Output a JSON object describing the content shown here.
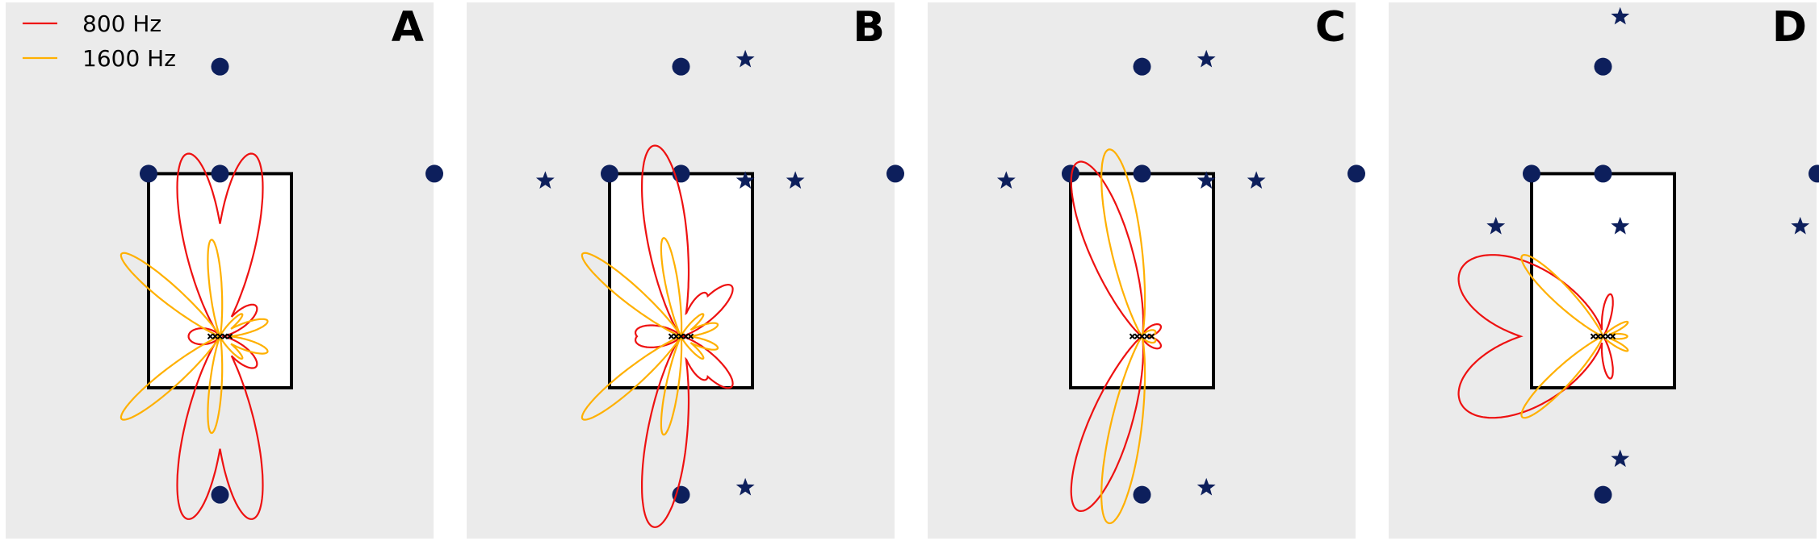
{
  "legend": {
    "items": [
      {
        "label": "800 Hz",
        "color": "#ee1111"
      },
      {
        "label": "1600 Hz",
        "color": "#ffb000"
      }
    ]
  },
  "colors": {
    "panel_background": "#ebebeb",
    "room_fill": "#ffffff",
    "room_edge": "#000000",
    "marker": "#0d1f5c"
  },
  "chart_data": [
    {
      "type": "polar-overlay",
      "label": "A",
      "xlim": [
        -1.5,
        1.5
      ],
      "ylim": [
        -1.5,
        2.2
      ],
      "room": {
        "x": [
          -0.5,
          0.5
        ],
        "y": [
          -0.5,
          1.0
        ]
      },
      "array_center": [
        0.0,
        -0.14
      ],
      "circles": [
        [
          0,
          1.75
        ],
        [
          -0.5,
          1.0
        ],
        [
          0,
          1.0
        ],
        [
          1.5,
          1.0
        ],
        [
          0,
          -1.25
        ]
      ],
      "stars": [],
      "series": [
        {
          "name": "800 Hz",
          "lobes": [
            {
              "dir": 80,
              "len": 1.3,
              "w": 10
            },
            {
              "dir": 100,
              "len": 1.3,
              "w": 10
            },
            {
              "dir": -80,
              "len": 1.3,
              "w": 10
            },
            {
              "dir": -100,
              "len": 1.3,
              "w": 10
            },
            {
              "dir": 40,
              "len": 0.33,
              "w": 16
            },
            {
              "dir": -40,
              "len": 0.33,
              "w": 16
            },
            {
              "dir": 180,
              "len": 0.22,
              "w": 25
            }
          ]
        },
        {
          "name": "1600 Hz",
          "lobes": [
            {
              "dir": 140,
              "len": 0.9,
              "w": 7
            },
            {
              "dir": -140,
              "len": 0.9,
              "w": 7
            },
            {
              "dir": 95,
              "len": 0.68,
              "w": 6
            },
            {
              "dir": -95,
              "len": 0.68,
              "w": 6
            },
            {
              "dir": 18,
              "len": 0.35,
              "w": 10
            },
            {
              "dir": -18,
              "len": 0.35,
              "w": 10
            },
            {
              "dir": 45,
              "len": 0.22,
              "w": 8
            },
            {
              "dir": -45,
              "len": 0.22,
              "w": 8
            }
          ]
        }
      ]
    },
    {
      "type": "polar-overlay",
      "label": "B",
      "xlim": [
        -1.5,
        1.5
      ],
      "ylim": [
        -1.5,
        2.2
      ],
      "room": {
        "x": [
          -0.5,
          0.5
        ],
        "y": [
          -0.5,
          1.0
        ]
      },
      "array_center": [
        0.0,
        -0.14
      ],
      "circles": [
        [
          -0.5,
          1.0
        ],
        [
          0,
          1.0
        ],
        [
          0,
          1.75
        ],
        [
          1.5,
          1.0
        ],
        [
          0,
          -1.25
        ]
      ],
      "stars": [
        [
          0.45,
          1.8
        ],
        [
          -0.95,
          0.95
        ],
        [
          0.45,
          0.95
        ],
        [
          0.8,
          0.95
        ],
        [
          0.45,
          -1.2
        ]
      ],
      "series": [
        {
          "name": "800 Hz",
          "lobes": [
            {
              "dir": 98,
              "len": 1.35,
              "w": 10
            },
            {
              "dir": -98,
              "len": 1.35,
              "w": 10
            },
            {
              "dir": 45,
              "len": 0.5,
              "w": 13
            },
            {
              "dir": -45,
              "len": 0.5,
              "w": 13
            },
            {
              "dir": 175,
              "len": 0.32,
              "w": 18
            },
            {
              "dir": -175,
              "len": 0.32,
              "w": 18
            },
            {
              "dir": 60,
              "len": 0.35,
              "w": 14
            },
            {
              "dir": -60,
              "len": 0.35,
              "w": 14
            }
          ]
        },
        {
          "name": "1600 Hz",
          "lobes": [
            {
              "dir": 140,
              "len": 0.9,
              "w": 7
            },
            {
              "dir": -140,
              "len": 0.9,
              "w": 7
            },
            {
              "dir": 100,
              "len": 0.7,
              "w": 6
            },
            {
              "dir": -100,
              "len": 0.7,
              "w": 6
            },
            {
              "dir": 18,
              "len": 0.27,
              "w": 10
            },
            {
              "dir": -18,
              "len": 0.27,
              "w": 10
            },
            {
              "dir": 45,
              "len": 0.22,
              "w": 8
            },
            {
              "dir": -45,
              "len": 0.22,
              "w": 8
            }
          ]
        }
      ]
    },
    {
      "type": "polar-overlay",
      "label": "C",
      "xlim": [
        -1.5,
        1.5
      ],
      "ylim": [
        -1.5,
        2.2
      ],
      "room": {
        "x": [
          -0.5,
          0.5
        ],
        "y": [
          -0.5,
          1.0
        ]
      },
      "array_center": [
        0.0,
        -0.14
      ],
      "circles": [
        [
          -0.5,
          1.0
        ],
        [
          0,
          1.0
        ],
        [
          0,
          1.75
        ],
        [
          1.5,
          1.0
        ],
        [
          0,
          -1.25
        ]
      ],
      "stars": [
        [
          0.45,
          1.8
        ],
        [
          -0.95,
          0.95
        ],
        [
          0.45,
          0.95
        ],
        [
          0.8,
          0.95
        ],
        [
          0.45,
          -1.2
        ]
      ],
      "series": [
        {
          "name": "800 Hz",
          "lobes": [
            {
              "dir": 110,
              "len": 1.3,
              "w": 11
            },
            {
              "dir": -110,
              "len": 1.3,
              "w": 11
            },
            {
              "dir": 30,
              "len": 0.15,
              "w": 20
            },
            {
              "dir": -30,
              "len": 0.15,
              "w": 20
            }
          ]
        },
        {
          "name": "1600 Hz",
          "lobes": [
            {
              "dir": 100,
              "len": 1.33,
              "w": 8
            },
            {
              "dir": -100,
              "len": 1.33,
              "w": 8
            },
            {
              "dir": 20,
              "len": 0.1,
              "w": 20
            },
            {
              "dir": -20,
              "len": 0.1,
              "w": 20
            }
          ]
        }
      ]
    },
    {
      "type": "polar-overlay",
      "label": "D",
      "xlim": [
        -1.5,
        1.5
      ],
      "ylim": [
        -1.5,
        2.2
      ],
      "room": {
        "x": [
          -0.5,
          0.5
        ],
        "y": [
          -0.5,
          1.0
        ]
      },
      "array_center": [
        0.0,
        -0.14
      ],
      "circles": [
        [
          -0.5,
          1.0
        ],
        [
          0,
          1.0
        ],
        [
          0,
          1.75
        ],
        [
          1.5,
          1.0
        ],
        [
          0,
          -1.25
        ]
      ],
      "stars": [
        [
          0.12,
          2.1
        ],
        [
          -0.75,
          0.63
        ],
        [
          0.12,
          0.63
        ],
        [
          1.38,
          0.63
        ],
        [
          0.12,
          -1.0
        ]
      ],
      "series": [
        {
          "name": "800 Hz",
          "lobes": [
            {
              "dir": 155,
              "len": 1.1,
              "w": 22
            },
            {
              "dir": -155,
              "len": 1.1,
              "w": 22
            },
            {
              "dir": 80,
              "len": 0.3,
              "w": 10
            },
            {
              "dir": -80,
              "len": 0.3,
              "w": 10
            }
          ]
        },
        {
          "name": "1600 Hz",
          "lobes": [
            {
              "dir": 135,
              "len": 0.8,
              "w": 8
            },
            {
              "dir": -135,
              "len": 0.8,
              "w": 8
            },
            {
              "dir": 30,
              "len": 0.2,
              "w": 8
            },
            {
              "dir": -30,
              "len": 0.2,
              "w": 8
            },
            {
              "dir": 0,
              "len": 0.17,
              "w": 10
            }
          ]
        }
      ]
    }
  ]
}
